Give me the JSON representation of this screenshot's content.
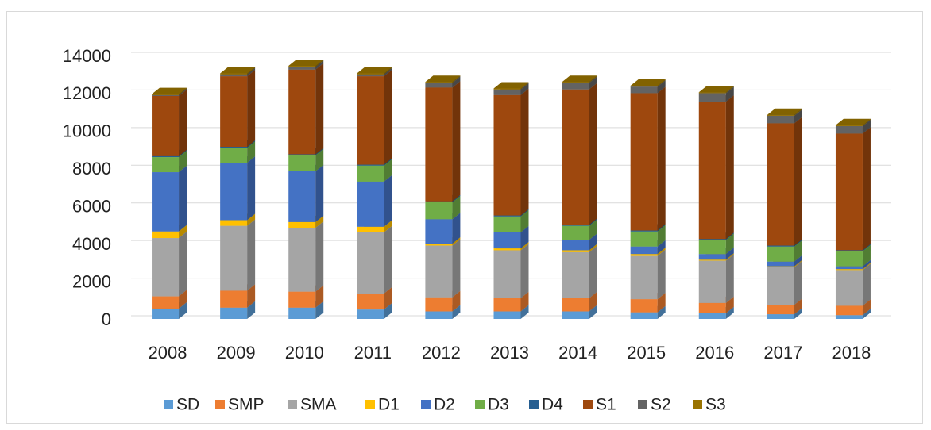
{
  "chart_data": {
    "type": "bar3d_stacked",
    "categories": [
      "2008",
      "2009",
      "2010",
      "2011",
      "2012",
      "2013",
      "2014",
      "2015",
      "2016",
      "2017",
      "2018"
    ],
    "series": [
      {
        "name": "SD",
        "color": "#5b9bd5",
        "values": [
          550,
          600,
          600,
          500,
          400,
          400,
          400,
          350,
          300,
          250,
          200
        ]
      },
      {
        "name": "SMP",
        "color": "#ed7d31",
        "values": [
          650,
          900,
          850,
          850,
          750,
          700,
          700,
          700,
          550,
          500,
          500
        ]
      },
      {
        "name": "SMA",
        "color": "#a5a5a5",
        "values": [
          3100,
          3450,
          3400,
          3250,
          2750,
          2550,
          2450,
          2300,
          2250,
          2000,
          1900
        ]
      },
      {
        "name": "D1",
        "color": "#ffc000",
        "values": [
          350,
          300,
          300,
          300,
          100,
          100,
          100,
          100,
          50,
          50,
          50
        ]
      },
      {
        "name": "D2",
        "color": "#4472c4",
        "values": [
          3150,
          3050,
          2700,
          2400,
          1300,
          850,
          550,
          400,
          300,
          250,
          150
        ]
      },
      {
        "name": "D3",
        "color": "#70ad47",
        "values": [
          800,
          800,
          850,
          850,
          900,
          850,
          750,
          800,
          750,
          800,
          800
        ]
      },
      {
        "name": "D4",
        "color": "#255e91",
        "values": [
          50,
          50,
          50,
          50,
          50,
          50,
          50,
          50,
          50,
          50,
          50
        ]
      },
      {
        "name": "S1",
        "color": "#9e480e",
        "values": [
          3200,
          3750,
          4500,
          4700,
          6050,
          6400,
          7200,
          7300,
          7300,
          6500,
          6200
        ]
      },
      {
        "name": "S2",
        "color": "#636363",
        "values": [
          50,
          100,
          150,
          100,
          250,
          300,
          350,
          350,
          450,
          400,
          400
        ]
      },
      {
        "name": "S3",
        "color": "#997300",
        "values": [
          50,
          50,
          50,
          50,
          50,
          50,
          50,
          50,
          50,
          50,
          50
        ]
      }
    ],
    "ylim": [
      0,
      14000
    ],
    "yticks": [
      0,
      2000,
      4000,
      6000,
      8000,
      10000,
      12000,
      14000
    ],
    "grid": true
  }
}
